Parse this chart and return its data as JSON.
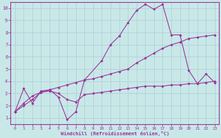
{
  "bg_color": "#c8e8e8",
  "line_color": "#993399",
  "grid_color": "#b0d0d8",
  "xlabel": "Windchill (Refroidissement éolien,°C)",
  "xlim": [
    -0.5,
    23.5
  ],
  "ylim": [
    0.5,
    10.5
  ],
  "xticks": [
    0,
    1,
    2,
    3,
    4,
    5,
    6,
    7,
    8,
    9,
    10,
    11,
    12,
    13,
    14,
    15,
    16,
    17,
    18,
    19,
    20,
    21,
    22,
    23
  ],
  "yticks": [
    1,
    2,
    3,
    4,
    5,
    6,
    7,
    8,
    9,
    10
  ],
  "line1_x": [
    0,
    1,
    2,
    3,
    4,
    5,
    6,
    7,
    8,
    10,
    11,
    12,
    13,
    14,
    15,
    16,
    17,
    18,
    19,
    20,
    21,
    22,
    23
  ],
  "line1_y": [
    1.5,
    3.4,
    2.2,
    3.2,
    3.3,
    2.7,
    0.85,
    1.5,
    4.1,
    5.7,
    7.0,
    7.7,
    8.8,
    9.8,
    10.3,
    9.9,
    10.3,
    7.8,
    7.8,
    4.9,
    3.8,
    4.6,
    3.9
  ],
  "line2_x": [
    0,
    1,
    2,
    3,
    4,
    5,
    6,
    7,
    8,
    9,
    10,
    11,
    12,
    13,
    14,
    15,
    16,
    17,
    18,
    19,
    20,
    21,
    22,
    23
  ],
  "line2_y": [
    1.5,
    2.0,
    2.5,
    3.1,
    3.3,
    3.5,
    3.7,
    3.9,
    4.1,
    4.2,
    4.4,
    4.6,
    4.8,
    5.0,
    5.5,
    5.9,
    6.3,
    6.7,
    7.0,
    7.2,
    7.5,
    7.6,
    7.7,
    7.8
  ],
  "line3_x": [
    0,
    1,
    2,
    3,
    4,
    5,
    6,
    7,
    8,
    9,
    10,
    11,
    12,
    13,
    14,
    15,
    16,
    17,
    18,
    19,
    20,
    21,
    22,
    23
  ],
  "line3_y": [
    1.5,
    2.2,
    2.8,
    3.1,
    3.2,
    3.0,
    2.5,
    2.3,
    2.9,
    3.0,
    3.1,
    3.2,
    3.3,
    3.4,
    3.5,
    3.6,
    3.6,
    3.6,
    3.7,
    3.7,
    3.8,
    3.8,
    3.9,
    4.0
  ]
}
